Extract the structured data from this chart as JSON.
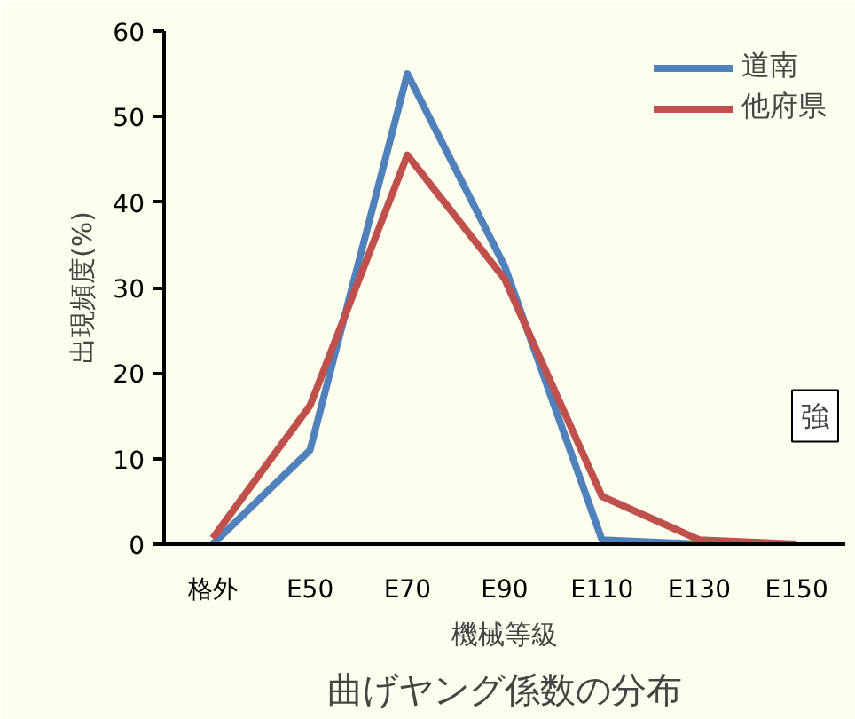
{
  "chart_data": {
    "type": "line",
    "title": "曲げヤング係数の分布",
    "xlabel": "機械等級",
    "ylabel": "出現頻度(%)",
    "categories": [
      "格外",
      "E50",
      "E70",
      "E90",
      "E110",
      "E130",
      "E150"
    ],
    "series": [
      {
        "name": "道南",
        "color": "#4f81bd",
        "values": [
          0,
          11,
          55,
          32.5,
          0.5,
          0,
          0
        ]
      },
      {
        "name": "他府県",
        "color": "#c0504d",
        "values": [
          0.7,
          16.2,
          45.5,
          31,
          5.6,
          0.5,
          0
        ]
      }
    ],
    "ylim": [
      0,
      60
    ],
    "yticks": [
      0,
      10,
      20,
      30,
      40,
      50,
      60
    ],
    "legend": "top right",
    "annotations": [
      "強"
    ]
  }
}
